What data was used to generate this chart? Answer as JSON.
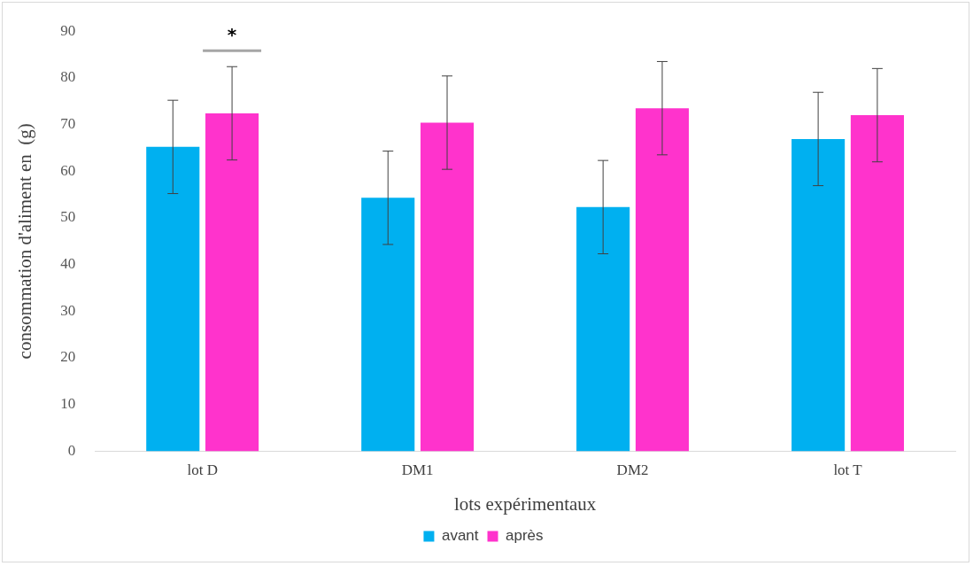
{
  "chart_data": {
    "type": "bar",
    "xlabel": "lots expérimentaux",
    "ylabel": "consommation d'aliment en  (g)",
    "categories": [
      "lot D",
      "DM1",
      "DM2",
      "lot T"
    ],
    "series": [
      {
        "name": "avant",
        "color": "#00b0f0",
        "values": [
          65.2,
          54.3,
          52.3,
          66.9
        ],
        "errors": [
          10,
          10,
          10,
          10
        ]
      },
      {
        "name": "après",
        "color": "#ff33cc",
        "values": [
          72.4,
          70.4,
          73.5,
          72.0
        ],
        "errors": [
          10,
          10,
          10,
          10
        ]
      }
    ],
    "ylim": [
      0,
      90
    ],
    "yticks": [
      0,
      10,
      20,
      30,
      40,
      50,
      60,
      70,
      80,
      90
    ],
    "grid": false,
    "legend": "bottom",
    "annotations": [
      "*"
    ]
  }
}
